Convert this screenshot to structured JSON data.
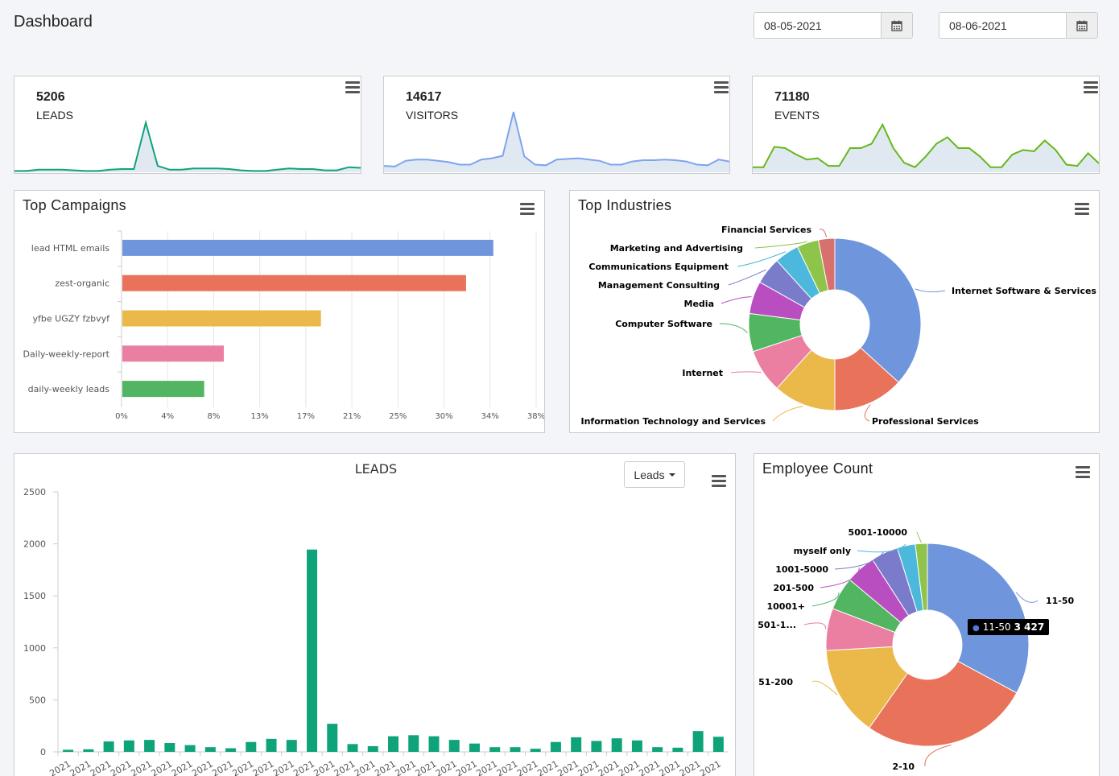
{
  "header": {
    "title": "Dashboard",
    "date_from": "08-05-2021",
    "date_to": "08-06-2021"
  },
  "colors": {
    "leads": "#0fa37a",
    "visitors": "#7da4ef",
    "events": "#66b81a",
    "area_fill": "#dbe5ef"
  },
  "stats": [
    {
      "value": "5206",
      "label": "LEADS"
    },
    {
      "value": "14617",
      "label": "VISITORS"
    },
    {
      "value": "71180",
      "label": "EVENTS"
    }
  ],
  "campaigns": {
    "title": "Top Campaigns"
  },
  "industries": {
    "title": "Top Industries"
  },
  "leads_chart": {
    "title": "LEADS",
    "dropdown_label": "Leads"
  },
  "employee": {
    "title": "Employee Count"
  },
  "tooltip": {
    "label": "11-50",
    "value": "3 427"
  },
  "chart_data": [
    {
      "type": "area",
      "name": "leads-sparkline",
      "values": [
        2,
        2,
        4,
        4,
        4,
        3,
        2,
        2,
        4,
        5,
        5,
        78,
        10,
        4,
        4,
        6,
        6,
        6,
        5,
        3,
        2,
        2,
        4,
        6,
        5,
        5,
        3,
        3,
        8,
        7
      ]
    },
    {
      "type": "area",
      "name": "visitors-sparkline",
      "values": [
        10,
        9,
        18,
        20,
        20,
        18,
        16,
        12,
        12,
        20,
        22,
        26,
        95,
        25,
        12,
        11,
        20,
        21,
        22,
        20,
        18,
        12,
        12,
        17,
        19,
        19,
        20,
        19,
        17,
        12,
        11,
        20,
        17
      ]
    },
    {
      "type": "area",
      "name": "events-sparkline",
      "values": [
        8,
        8,
        40,
        38,
        28,
        20,
        22,
        10,
        10,
        38,
        38,
        45,
        75,
        38,
        15,
        8,
        25,
        45,
        55,
        38,
        38,
        25,
        8,
        8,
        28,
        35,
        33,
        50,
        35,
        12,
        10,
        30,
        14
      ]
    },
    {
      "type": "bar",
      "orientation": "horizontal",
      "categories": [
        "lead HTML emails",
        "zest-organic",
        "yfbe UGZY fzbvyf",
        "Daily-weekly-report",
        "daily-weekly leads"
      ],
      "values": [
        34,
        31.5,
        18.2,
        9.3,
        7.5
      ],
      "colors": [
        "#6f96dd",
        "#e8735a",
        "#ebb84a",
        "#ea7fa2",
        "#52b562"
      ],
      "x_ticks": [
        "0%",
        "4%",
        "8%",
        "13%",
        "17%",
        "21%",
        "25%",
        "30%",
        "34%",
        "38%"
      ],
      "xlim": [
        0,
        38
      ]
    },
    {
      "type": "pie",
      "name": "top-industries",
      "labels": [
        "Internet Software & Services",
        "Professional Services",
        "Information Technology and Services",
        "Internet",
        "Computer Software",
        "Media",
        "Management Consulting",
        "Communications Equipment",
        "Marketing and Advertising",
        "Financial Services"
      ],
      "values": [
        36,
        13,
        11.5,
        8,
        7,
        6,
        5,
        4.5,
        4,
        3
      ],
      "colors": [
        "#6f96dd",
        "#e8735a",
        "#ebb84a",
        "#ea7fa2",
        "#52b562",
        "#b94ec0",
        "#7a7ccb",
        "#4cb8db",
        "#8ec44a",
        "#d8706e"
      ]
    },
    {
      "type": "bar",
      "name": "leads-by-day",
      "title": "LEADS",
      "values": [
        20,
        25,
        100,
        110,
        115,
        85,
        65,
        45,
        35,
        95,
        125,
        115,
        1945,
        270,
        75,
        55,
        150,
        160,
        150,
        115,
        80,
        45,
        45,
        30,
        95,
        140,
        105,
        130,
        110,
        45,
        40,
        200,
        145
      ],
      "x_labels": [
        "2021",
        "2021",
        "2021",
        "2021",
        "2021",
        "2021",
        "2021",
        "2021",
        "2021",
        "2021",
        "2021",
        "2021",
        "2021",
        "2021",
        "2021",
        "2021",
        "2021",
        "2021",
        "2021",
        "2021",
        "2021",
        "2021",
        "2021",
        "2021",
        "2021",
        "2021",
        "2021",
        "2021",
        "2021",
        "2021",
        "2021",
        "2021",
        "2021"
      ],
      "y_ticks": [
        0,
        500,
        1000,
        1500,
        2000,
        2500
      ],
      "ylim": [
        0,
        2500
      ],
      "color": "#0fa37a"
    },
    {
      "type": "pie",
      "name": "employee-count",
      "title": "Employee Count",
      "labels": [
        "11-50",
        "2-10",
        "51-200",
        "501-1...",
        "10001+",
        "201-500",
        "1001-5000",
        "myself only",
        "5001-10000"
      ],
      "values": [
        3427,
        2800,
        1500,
        700,
        550,
        500,
        450,
        300,
        200
      ],
      "colors": [
        "#6f96dd",
        "#e8735a",
        "#ebb84a",
        "#ea7fa2",
        "#52b562",
        "#b94ec0",
        "#7a7ccb",
        "#4cb8db",
        "#8ec44a"
      ]
    }
  ]
}
